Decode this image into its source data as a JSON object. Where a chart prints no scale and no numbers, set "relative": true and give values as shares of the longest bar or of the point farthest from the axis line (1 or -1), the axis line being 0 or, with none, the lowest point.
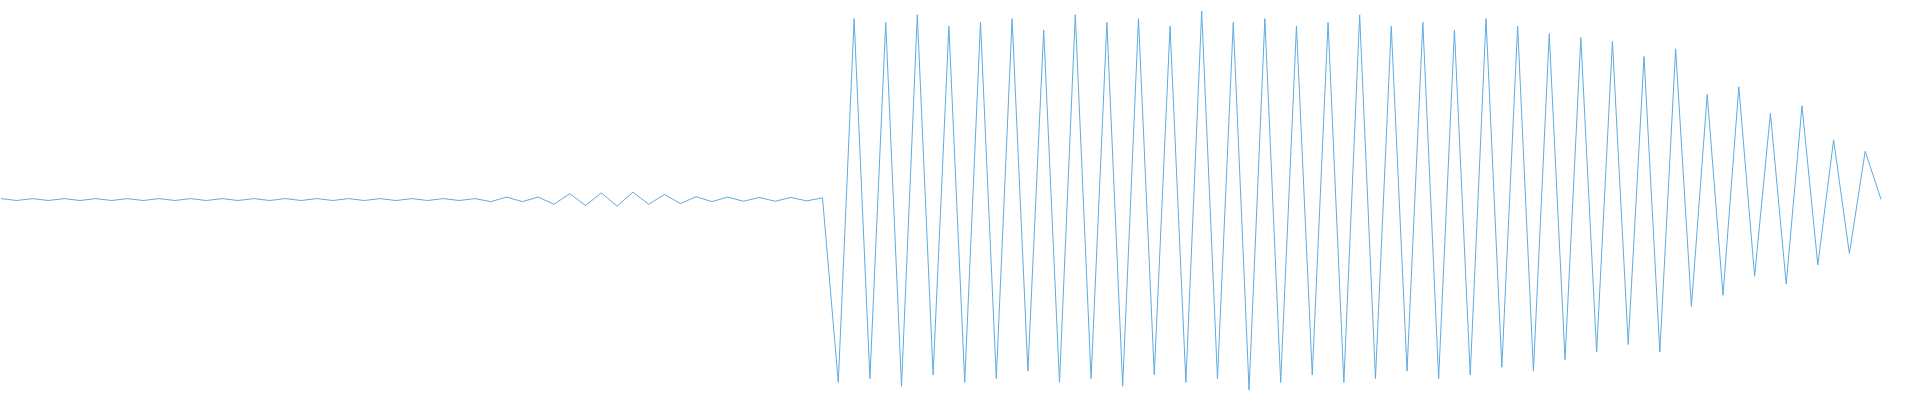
{
  "chart_data": {
    "type": "line",
    "relative": true,
    "color": "#5fabe1",
    "categories": [
      null,
      null,
      null,
      null,
      null,
      null,
      null,
      null,
      null,
      null,
      null,
      null,
      null,
      null,
      null,
      null,
      null,
      null,
      null,
      null,
      null,
      null,
      null,
      null,
      null,
      null,
      null,
      null,
      null,
      null,
      null,
      null,
      null,
      null,
      null,
      null,
      null,
      null,
      null,
      null,
      null,
      null,
      null,
      null,
      null,
      null,
      null,
      null,
      null,
      null,
      null,
      null,
      null,
      null,
      null,
      null,
      null,
      null,
      null,
      null,
      null,
      null,
      null,
      null,
      null,
      null,
      null,
      null,
      null,
      null,
      null,
      null,
      null,
      null,
      null,
      null,
      null,
      null,
      null,
      null,
      null,
      null,
      null,
      null,
      null,
      null,
      null,
      null,
      null,
      null,
      null,
      null,
      null,
      null,
      null,
      null,
      null,
      null,
      null,
      null,
      null,
      null,
      null,
      null,
      null,
      null,
      null,
      null,
      null,
      null,
      null,
      null,
      null,
      null,
      null,
      null,
      null,
      null,
      null,
      null
    ],
    "values": [
      0.505,
      0.5,
      0.505,
      0.5,
      0.505,
      0.5,
      0.505,
      0.5,
      0.505,
      0.5,
      0.505,
      0.5,
      0.505,
      0.5,
      0.505,
      0.5,
      0.505,
      0.5,
      0.505,
      0.5,
      0.505,
      0.5,
      0.505,
      0.5,
      0.505,
      0.5,
      0.505,
      0.5,
      0.505,
      0.5,
      0.505,
      0.497,
      0.509,
      0.497,
      0.509,
      0.49,
      0.518,
      0.487,
      0.52,
      0.485,
      0.522,
      0.49,
      0.516,
      0.492,
      0.51,
      0.497,
      0.509,
      0.498,
      0.508,
      0.498,
      0.508,
      0.499,
      0.507,
      0.02,
      0.98,
      0.03,
      0.97,
      0.01,
      0.99,
      0.04,
      0.96,
      0.02,
      0.97,
      0.03,
      0.98,
      0.05,
      0.95,
      0.02,
      0.99,
      0.03,
      0.97,
      0.01,
      0.98,
      0.04,
      0.96,
      0.02,
      1,
      0.03,
      0.97,
      0,
      0.98,
      0.02,
      0.96,
      0.04,
      0.97,
      0.02,
      0.99,
      0.03,
      0.96,
      0.05,
      0.97,
      0.03,
      0.95,
      0.04,
      0.98,
      0.06,
      0.96,
      0.05,
      0.94,
      0.08,
      0.93,
      0.1,
      0.92,
      0.12,
      0.88,
      0.1,
      0.9,
      0.22,
      0.78,
      0.25,
      0.8,
      0.3,
      0.73,
      0.28,
      0.75,
      0.33,
      0.66,
      0.36,
      0.63,
      0.503
    ]
  }
}
